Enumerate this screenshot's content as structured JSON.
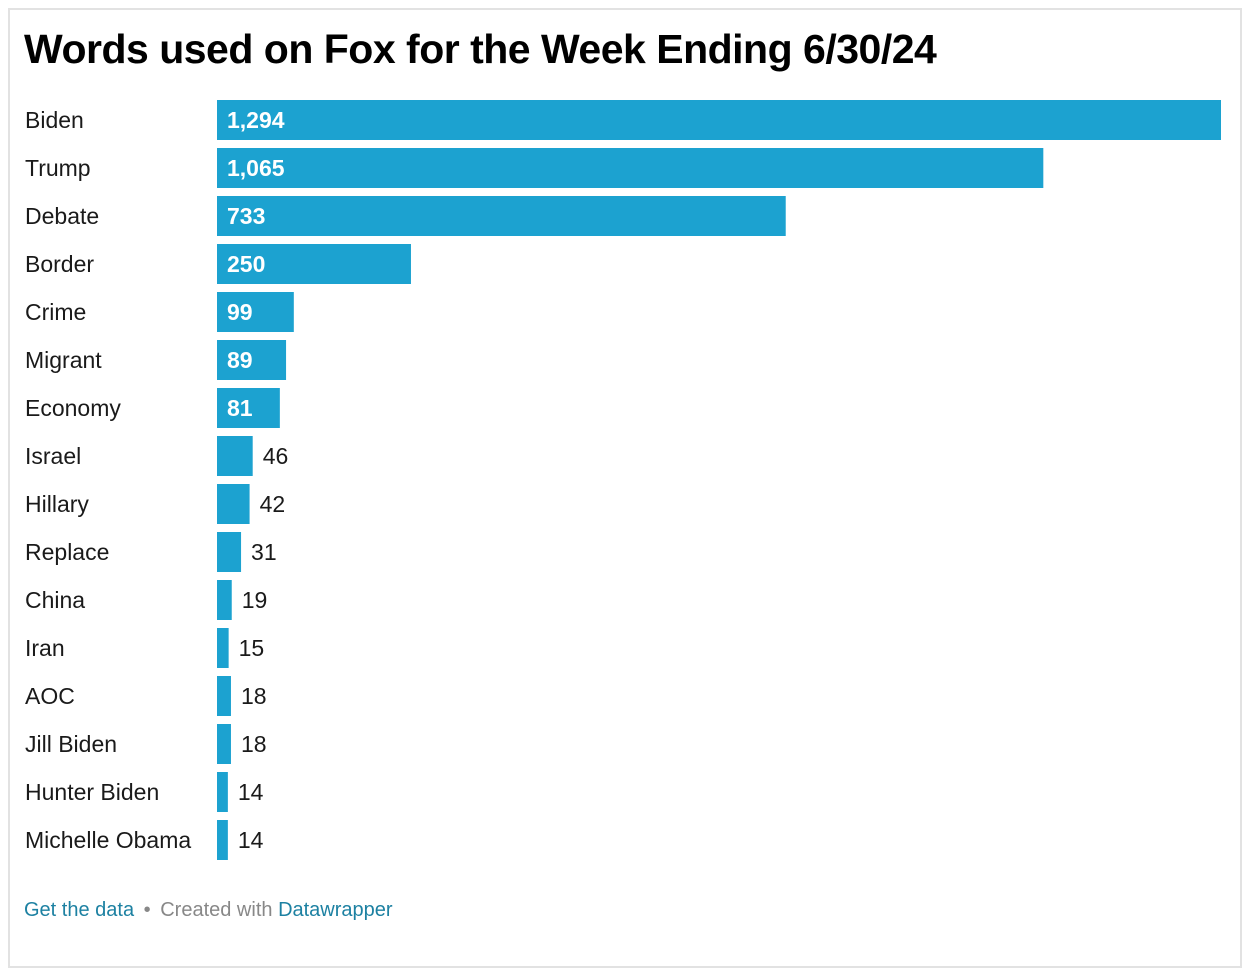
{
  "title": "Words used on Fox for the Week Ending 6/30/24",
  "colors": {
    "bar": "#1ca2d0",
    "link": "#1d81a2",
    "muted": "#888888"
  },
  "footer": {
    "get_data_label": "Get the data",
    "separator": "•",
    "created_with_label": "Created with",
    "datawrapper_label": "Datawrapper"
  },
  "chart_data": {
    "type": "bar",
    "orientation": "horizontal",
    "title": "Words used on Fox for the Week Ending 6/30/24",
    "categories": [
      "Biden",
      "Trump",
      "Debate",
      "Border",
      "Crime",
      "Migrant",
      "Economy",
      "Israel",
      "Hillary",
      "Replace",
      "China",
      "Iran",
      "AOC",
      "Jill Biden",
      "Hunter Biden",
      "Michelle Obama"
    ],
    "values": [
      1294,
      1065,
      733,
      250,
      99,
      89,
      81,
      46,
      42,
      31,
      19,
      15,
      18,
      18,
      14,
      14
    ],
    "value_labels": [
      "1,294",
      "1,065",
      "733",
      "250",
      "99",
      "89",
      "81",
      "46",
      "42",
      "31",
      "19",
      "15",
      "18",
      "18",
      "14",
      "14"
    ],
    "xlim": [
      0,
      1294
    ],
    "grid": false,
    "legend": "none"
  }
}
